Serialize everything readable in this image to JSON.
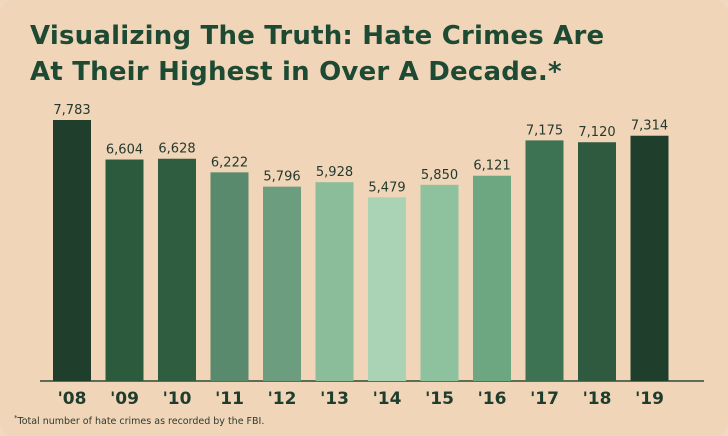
{
  "title_line1": "Visualizing The Truth: Hate Crimes Are",
  "title_line2": "At Their Highest in Over A Decade.*",
  "footnote_mark": "*",
  "footnote_text": "Total number of hate crimes as recorded by the FBI.",
  "chart_data": {
    "type": "bar",
    "title": "Visualizing The Truth: Hate Crimes Are At Their Highest in Over A Decade.*",
    "categories": [
      "'08",
      "'09",
      "'10",
      "'11",
      "'12",
      "'13",
      "'14",
      "'15",
      "'16",
      "'17",
      "'18",
      "'19"
    ],
    "values": [
      7783,
      6604,
      6628,
      6222,
      5796,
      5928,
      5479,
      5850,
      6121,
      7175,
      7120,
      7314
    ],
    "value_labels": [
      "7,783",
      "6,604",
      "6,628",
      "6,222",
      "5,796",
      "5,928",
      "5,479",
      "5,850",
      "6,121",
      "7,175",
      "7,120",
      "7,314"
    ],
    "colors": [
      "#1f3e2b",
      "#2c5a3d",
      "#2f5d40",
      "#5a8a6d",
      "#6c9d7e",
      "#8bbd9b",
      "#aad2b4",
      "#8ec29f",
      "#6da782",
      "#3d7352",
      "#2f5a40",
      "#1f3e2b"
    ],
    "xlabel": "",
    "ylabel": "",
    "ylim": [
      0,
      7783
    ],
    "grid": false,
    "legend": "none"
  }
}
